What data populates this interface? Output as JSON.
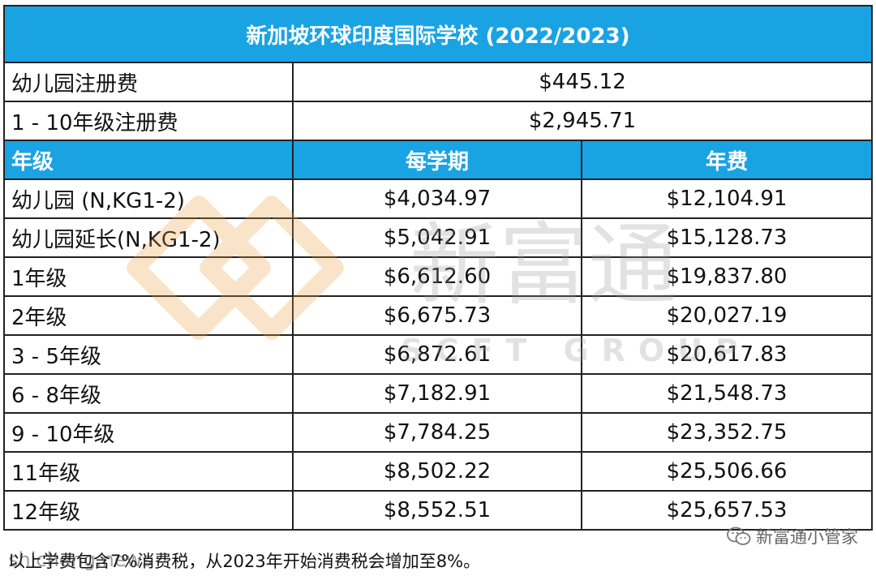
{
  "title": {
    "main": "新加坡环球印度国际学校",
    "year": "(2022/2023)"
  },
  "registration": [
    {
      "label": "幼儿园注册费",
      "value": "$445.12"
    },
    {
      "label": "1 - 10年级注册费",
      "value": "$2,945.71"
    }
  ],
  "header": {
    "grade": "年级",
    "per_term": "每学期",
    "annual": "年费"
  },
  "rows": [
    {
      "grade": "幼儿园 (N,KG1-2)",
      "per_term": "$4,034.97",
      "annual": "$12,104.91"
    },
    {
      "grade": "幼儿园延长(N,KG1-2)",
      "per_term": "$5,042.91",
      "annual": "$15,128.73"
    },
    {
      "grade": "1年级",
      "per_term": "$6,612.60",
      "annual": "$19,837.80"
    },
    {
      "grade": "2年级",
      "per_term": "$6,675.73",
      "annual": "$20,027.19"
    },
    {
      "grade": "3 - 5年级",
      "per_term": "$6,872.61",
      "annual": "$20,617.83"
    },
    {
      "grade": "6 - 8年级",
      "per_term": "$7,182.91",
      "annual": "$21,548.73"
    },
    {
      "grade": "9 - 10年级",
      "per_term": "$7,784.25",
      "annual": "$23,352.75"
    },
    {
      "grade": "11年级",
      "per_term": "$8,502.22",
      "annual": "$25,506.66"
    },
    {
      "grade": "12年级",
      "per_term": "$8,552.51",
      "annual": "$25,657.53"
    }
  ],
  "footnote": "以上学费包含7%消费税，从2023年开始消费税会增加至8%。",
  "watermark": {
    "text": "新富通",
    "subtext": "SCFT GROUP"
  },
  "wechat_badge": {
    "text": "新富通小管家",
    "icon": "wechat-icon"
  },
  "site_mark": "shicheng.news",
  "colors": {
    "header_blue": "#1aa3e3",
    "watermark_orange": "#f0a040"
  }
}
